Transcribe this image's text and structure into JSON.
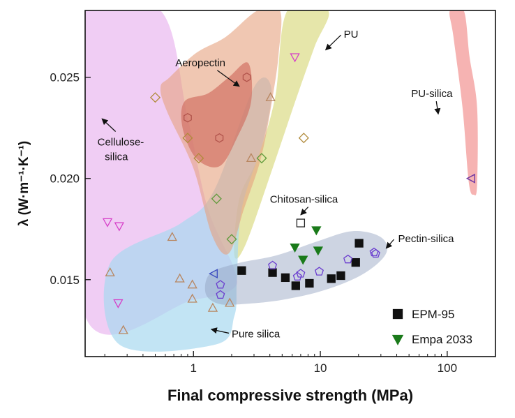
{
  "chart_data": {
    "type": "scatter",
    "title": "",
    "xlabel": "Final compressive strength (MPa)",
    "ylabel": "λ (W·m⁻¹·K⁻¹)",
    "xscale": "log",
    "xlim": [
      0.14,
      240
    ],
    "ylim": [
      0.0112,
      0.0283
    ],
    "xticks": [
      {
        "value": 1,
        "label": "1"
      },
      {
        "value": 10,
        "label": "10"
      },
      {
        "value": 100,
        "label": "100"
      }
    ],
    "yticks": [
      {
        "value": 0.015,
        "label": "0.015"
      },
      {
        "value": 0.02,
        "label": "0.020"
      },
      {
        "value": 0.025,
        "label": "0.025"
      }
    ],
    "grid": false,
    "legend_position": "bottom-right",
    "regions": [
      {
        "label": "Cellulose-silica",
        "color": "#eab8f0",
        "opacity": 0.7,
        "polygon": [
          [
            0.14,
            0.0283
          ],
          [
            0.55,
            0.0283
          ],
          [
            0.9,
            0.023
          ],
          [
            1.3,
            0.0185
          ],
          [
            2.1,
            0.0155
          ],
          [
            2.0,
            0.0145
          ],
          [
            1.0,
            0.014
          ],
          [
            0.14,
            0.0132
          ]
        ]
      },
      {
        "label": "PU",
        "color": "#dede8e",
        "opacity": 0.75,
        "polygon": [
          [
            5.5,
            0.0283
          ],
          [
            11.5,
            0.0283
          ],
          [
            9.0,
            0.0265
          ],
          [
            6.5,
            0.024
          ],
          [
            4.2,
            0.0205
          ],
          [
            2.6,
            0.0168
          ],
          [
            2.1,
            0.0162
          ],
          [
            2.3,
            0.019
          ],
          [
            3.2,
            0.021
          ],
          [
            4.4,
            0.024
          ]
        ]
      },
      {
        "label": "Pure silica",
        "color": "#a8d8f0",
        "opacity": 0.7,
        "polygon": [
          [
            0.22,
            0.0158
          ],
          [
            0.8,
            0.0178
          ],
          [
            1.45,
            0.0194
          ],
          [
            3.0,
            0.0245
          ],
          [
            4.1,
            0.0245
          ],
          [
            3.6,
            0.022
          ],
          [
            2.4,
            0.0185
          ],
          [
            2.2,
            0.015
          ],
          [
            2.1,
            0.0132
          ],
          [
            1.5,
            0.0118
          ],
          [
            0.26,
            0.0118
          ]
        ]
      },
      {
        "label": "Aeropectin",
        "color": "#e6a27e",
        "opacity": 0.6,
        "polygon": [
          [
            0.65,
            0.025
          ],
          [
            1.05,
            0.0262
          ],
          [
            1.8,
            0.027
          ],
          [
            3.2,
            0.0283
          ],
          [
            4.8,
            0.0283
          ],
          [
            4.7,
            0.0262
          ],
          [
            4.2,
            0.024
          ],
          [
            3.4,
            0.021
          ],
          [
            2.5,
            0.0185
          ],
          [
            1.9,
            0.0163
          ],
          [
            1.4,
            0.0172
          ],
          [
            1.0,
            0.0205
          ],
          [
            0.62,
            0.0233
          ],
          [
            0.55,
            0.0245
          ]
        ]
      },
      {
        "label": "Aeropectin",
        "color": "#d27264",
        "opacity": 0.7,
        "polygon": [
          [
            0.85,
            0.0238
          ],
          [
            1.3,
            0.0242
          ],
          [
            1.9,
            0.025
          ],
          [
            2.7,
            0.0257
          ],
          [
            2.85,
            0.0238
          ],
          [
            2.2,
            0.022
          ],
          [
            1.6,
            0.0206
          ],
          [
            1.05,
            0.021
          ],
          [
            0.82,
            0.0225
          ]
        ]
      },
      {
        "label": "PU-silica",
        "color": "#f4a6a4",
        "opacity": 0.85,
        "polygon": [
          [
            105,
            0.0283
          ],
          [
            135,
            0.0283
          ],
          [
            150,
            0.026
          ],
          [
            172,
            0.0235
          ],
          [
            172,
            0.0197
          ],
          [
            162,
            0.0192
          ],
          [
            148,
            0.0198
          ],
          [
            132,
            0.0235
          ],
          [
            112,
            0.027
          ]
        ]
      },
      {
        "label": "Pectin-silica",
        "color": "#909fbe",
        "opacity": 0.45,
        "polygon": [
          [
            1.25,
            0.0143
          ],
          [
            1.35,
            0.0153
          ],
          [
            2.2,
            0.0158
          ],
          [
            4.5,
            0.0162
          ],
          [
            9.5,
            0.0169
          ],
          [
            18,
            0.0174
          ],
          [
            30,
            0.0171
          ],
          [
            33,
            0.0163
          ],
          [
            22,
            0.0153
          ],
          [
            11,
            0.0145
          ],
          [
            5.0,
            0.014
          ],
          [
            2.5,
            0.0138
          ],
          [
            1.6,
            0.0138
          ]
        ]
      }
    ],
    "series": [
      {
        "name": "EPM-95",
        "marker": "square",
        "filled": true,
        "color": "#111111",
        "x": [
          2.4,
          4.2,
          5.3,
          6.4,
          8.2,
          12.2,
          14.5,
          19,
          20.2
        ],
        "y": [
          0.01545,
          0.01535,
          0.0151,
          0.0147,
          0.01482,
          0.01505,
          0.0152,
          0.01585,
          0.0168
        ]
      },
      {
        "name": "Empa 2033",
        "marker": "triangle-down",
        "filled": true,
        "color": "#1a7a1a",
        "x": [
          6.3,
          7.3,
          9.3,
          9.6
        ],
        "y": [
          0.0166,
          0.016,
          0.01745,
          0.01645
        ]
      },
      {
        "marker": "square",
        "filled": false,
        "color": "#222222",
        "x": [
          7.0
        ],
        "y": [
          0.0178
        ]
      },
      {
        "marker": "pentagon",
        "filled": false,
        "color": "#6a3ccf",
        "x": [
          1.63,
          1.63,
          4.2,
          6.6,
          7.0,
          9.8,
          16.5,
          26.5,
          27.3
        ],
        "y": [
          0.01475,
          0.01425,
          0.0157,
          0.01515,
          0.0153,
          0.0154,
          0.016,
          0.01635,
          0.01628
        ]
      },
      {
        "marker": "hexagon",
        "filled": false,
        "color": "#b0524a",
        "x": [
          2.63,
          0.9,
          1.6
        ],
        "y": [
          0.025,
          0.023,
          0.022
        ]
      },
      {
        "marker": "diamond",
        "filled": false,
        "color": "#b08a3a",
        "x": [
          0.5,
          0.9,
          1.1,
          7.4
        ],
        "y": [
          0.024,
          0.022,
          0.021,
          0.022
        ]
      },
      {
        "marker": "diamond",
        "filled": false,
        "color": "#5f9a3a",
        "x": [
          1.52,
          3.45,
          2.0
        ],
        "y": [
          0.019,
          0.021,
          0.017
        ]
      },
      {
        "marker": "triangle-up",
        "filled": false,
        "color": "#b88660",
        "x": [
          4.05,
          2.85,
          0.68,
          0.22,
          0.78,
          0.98,
          0.98,
          1.42,
          1.93,
          0.28
        ],
        "y": [
          0.024,
          0.021,
          0.0171,
          0.01535,
          0.01505,
          0.01475,
          0.01405,
          0.0136,
          0.01385,
          0.0125
        ]
      },
      {
        "marker": "triangle-down",
        "filled": false,
        "color": "#d640c8",
        "x": [
          6.3,
          0.21,
          0.26,
          0.255
        ],
        "y": [
          0.026,
          0.01785,
          0.01765,
          0.01385
        ]
      },
      {
        "marker": "triangle-left",
        "filled": false,
        "color": "#3a4ac0",
        "x": [
          1.45,
          155
        ],
        "y": [
          0.0153,
          0.02
        ]
      },
      {
        "marker": "triangle-left",
        "filled": false,
        "color": "#7a3aa0",
        "x": [
          155
        ],
        "y": [
          0.02
        ]
      }
    ],
    "annotations": [
      {
        "text": "Aeropectin",
        "tx": 0.72,
        "ty": 0.02555,
        "ax": 2.3,
        "ay": 0.02455
      },
      {
        "text": "PU",
        "tx": 15.3,
        "ty": 0.02695,
        "ax": 11.0,
        "ay": 0.02635
      },
      {
        "text": "PU-silica",
        "tx": 52,
        "ty": 0.02402,
        "ax": 85,
        "ay": 0.02318
      },
      {
        "text": "Cellulose-",
        "tx": 0.175,
        "ty": 0.02163,
        "ax": 0.19,
        "ay": 0.02295
      },
      {
        "text": "silica",
        "tx": 0.2,
        "ty": 0.0209,
        "ax": null,
        "ay": null
      },
      {
        "text": "Chitosan-silica",
        "tx": 4.0,
        "ty": 0.0188,
        "ax": 7.0,
        "ay": 0.0182
      },
      {
        "text": "Pectin-silica",
        "tx": 41,
        "ty": 0.01685,
        "ax": 33,
        "ay": 0.01655
      },
      {
        "text": "Pure silica",
        "tx": 2.0,
        "ty": 0.01215,
        "ax": 1.38,
        "ay": 0.01255
      }
    ]
  }
}
